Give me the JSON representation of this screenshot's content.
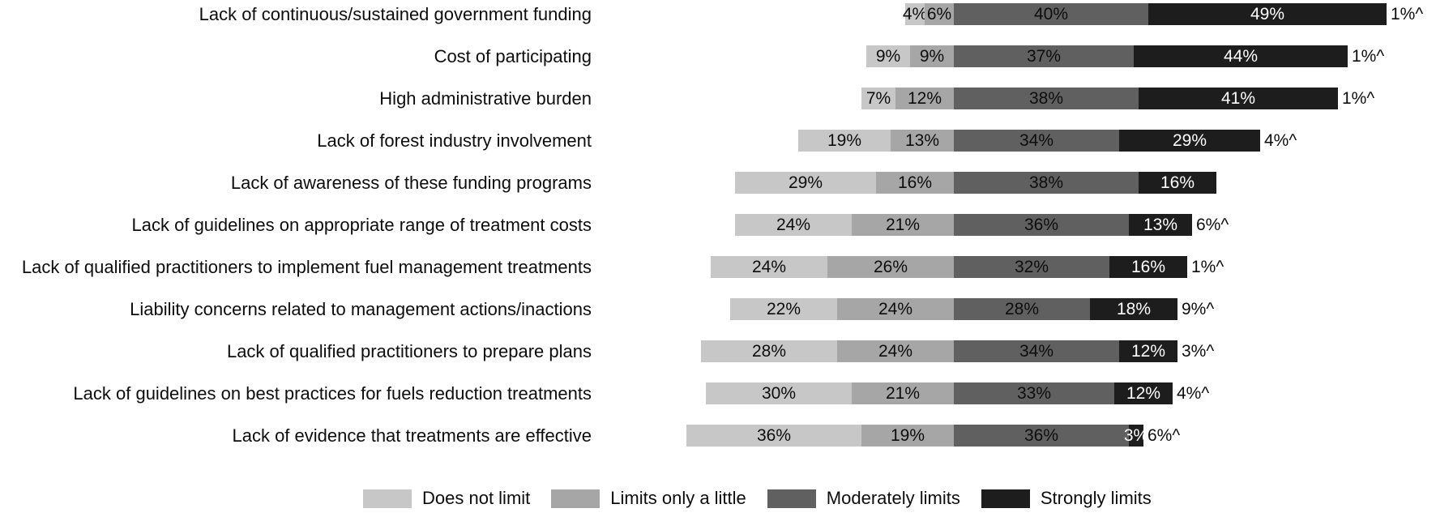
{
  "chart_data": {
    "type": "bar",
    "variant": "horizontal-diverging-stacked",
    "title": "",
    "xlabel": "",
    "ylabel": "",
    "grid": false,
    "alignment_note": "bars pivot-aligned at boundary between 'Limits only a little' and 'Moderately limits'",
    "categories": [
      "Lack of continuous/sustained government funding",
      "Cost of participating",
      "High administrative burden",
      "Lack of forest industry involvement",
      "Lack of awareness of these funding programs",
      "Lack of guidelines on appropriate range of treatment costs",
      "Lack of qualified practitioners to implement fuel management treatments",
      "Liability concerns related to management actions/inactions",
      "Lack of qualified practitioners to prepare plans",
      "Lack of guidelines on best practices for fuels reduction treatments",
      "Lack of evidence that treatments are effective"
    ],
    "series": [
      {
        "name": "Does not limit",
        "color": "#c7c7c7",
        "text_color": "#0d0d0d",
        "values": [
          4,
          9,
          7,
          19,
          29,
          24,
          24,
          22,
          28,
          30,
          36
        ]
      },
      {
        "name": "Limits only a little",
        "color": "#a6a6a6",
        "text_color": "#0d0d0d",
        "values": [
          6,
          9,
          12,
          13,
          16,
          21,
          26,
          24,
          24,
          21,
          19
        ]
      },
      {
        "name": "Moderately limits",
        "color": "#606060",
        "text_color": "#0d0d0d",
        "values": [
          40,
          37,
          38,
          34,
          38,
          36,
          32,
          28,
          34,
          33,
          36
        ]
      },
      {
        "name": "Strongly limits",
        "color": "#1d1d1d",
        "text_color": "#ffffff",
        "values": [
          49,
          44,
          41,
          29,
          16,
          13,
          16,
          18,
          12,
          12,
          3
        ]
      }
    ],
    "value_suffix": "%",
    "outside_labels": [
      "1%^",
      "1%^",
      "1%^",
      "4%^",
      "",
      "6%^",
      "1%^",
      "9%^",
      "3%^",
      "4%^",
      "6%^"
    ],
    "legend": {
      "position": "bottom",
      "items": [
        "Does not limit",
        "Limits only a little",
        "Moderately limits",
        "Strongly limits"
      ]
    }
  },
  "colors": {
    "background": "#ffffff",
    "text": "#0d0d0d",
    "does_not_limit": "#c7c7c7",
    "limits_only_a_little": "#a6a6a6",
    "moderately_limits": "#606060",
    "strongly_limits": "#1d1d1d"
  }
}
